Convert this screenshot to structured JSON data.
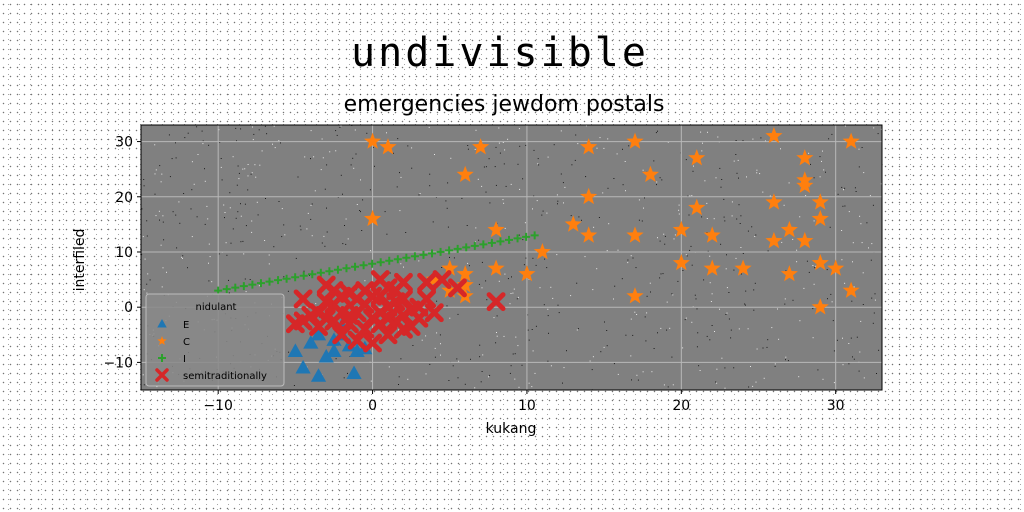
{
  "chart_data": {
    "type": "scatter",
    "title": "undivisible",
    "subtitle": "emergencies jewdom postals",
    "xlabel": "kukang",
    "ylabel": "interfiled",
    "xlim": [
      -15,
      33
    ],
    "ylim": [
      -15,
      33
    ],
    "x_ticks": [
      -10,
      0,
      10,
      20,
      30
    ],
    "y_ticks": [
      -10,
      0,
      10,
      20,
      30
    ],
    "grid": true,
    "plot_background": "#808080",
    "legend": {
      "title": "nidulant",
      "position": "lower-left"
    },
    "series": [
      {
        "name": "E",
        "marker": "triangle",
        "color": "#1f77b4",
        "points": [
          [
            -5,
            -8
          ],
          [
            -4.5,
            -11
          ],
          [
            -3.5,
            -12.5
          ],
          [
            -3,
            -9
          ],
          [
            -2.5,
            -6
          ],
          [
            -2,
            -5
          ],
          [
            -1.5,
            -7
          ],
          [
            -1,
            -8
          ],
          [
            -0.5,
            -7.5
          ],
          [
            -3.5,
            -5
          ],
          [
            -2.5,
            -8
          ],
          [
            -1.2,
            -12
          ],
          [
            -4,
            -6.5
          ],
          [
            -2,
            -3.5
          ]
        ]
      },
      {
        "name": "C",
        "marker": "star",
        "color": "#ff7f0e",
        "points": [
          [
            0,
            30
          ],
          [
            1,
            29
          ],
          [
            7,
            29
          ],
          [
            14,
            29
          ],
          [
            17,
            30
          ],
          [
            21,
            27
          ],
          [
            26,
            31
          ],
          [
            28,
            27
          ],
          [
            31,
            30
          ],
          [
            6,
            24
          ],
          [
            18,
            24
          ],
          [
            28,
            23
          ],
          [
            28,
            22
          ],
          [
            14,
            20
          ],
          [
            26,
            19
          ],
          [
            29,
            19
          ],
          [
            0,
            16
          ],
          [
            21,
            18
          ],
          [
            29,
            16
          ],
          [
            13,
            15
          ],
          [
            8,
            14
          ],
          [
            14,
            13
          ],
          [
            17,
            13
          ],
          [
            20,
            14
          ],
          [
            22,
            13
          ],
          [
            26,
            12
          ],
          [
            27,
            14
          ],
          [
            28,
            12
          ],
          [
            11,
            10
          ],
          [
            8,
            7
          ],
          [
            10,
            6
          ],
          [
            20,
            8
          ],
          [
            22,
            7
          ],
          [
            24,
            7
          ],
          [
            27,
            6
          ],
          [
            29,
            8
          ],
          [
            30,
            7
          ],
          [
            6,
            6
          ],
          [
            5,
            7
          ],
          [
            6,
            4
          ],
          [
            4,
            5
          ],
          [
            5,
            3
          ],
          [
            6,
            2
          ],
          [
            17,
            2
          ],
          [
            31,
            3
          ],
          [
            29,
            0
          ]
        ]
      },
      {
        "name": "I",
        "marker": "plus",
        "color": "#2ca02c",
        "line": {
          "x_start": -10,
          "y_start": 3,
          "x_end": 10.5,
          "y_end": 13,
          "count": 38
        }
      },
      {
        "name": "semitraditionally",
        "marker": "x",
        "color": "#d62728",
        "points": [
          [
            -3,
            4
          ],
          [
            -2.5,
            3
          ],
          [
            -1.5,
            2.5
          ],
          [
            0.5,
            5
          ],
          [
            1,
            3.5
          ],
          [
            2,
            4.5
          ],
          [
            3.5,
            4.5
          ],
          [
            4.5,
            5
          ],
          [
            5.5,
            3.5
          ],
          [
            8,
            1
          ],
          [
            -4.5,
            1.5
          ],
          [
            -3.5,
            -1
          ],
          [
            -2.5,
            0.5
          ],
          [
            -1.5,
            -1.5
          ],
          [
            -0.5,
            0.5
          ],
          [
            0.5,
            -1
          ],
          [
            1.5,
            1
          ],
          [
            2.5,
            -0.5
          ],
          [
            3.5,
            1.5
          ],
          [
            4,
            -1
          ],
          [
            -4.5,
            -2.5
          ],
          [
            -3.5,
            -3.5
          ],
          [
            -2.5,
            -2.5
          ],
          [
            -1.5,
            -3
          ],
          [
            -0.5,
            -4
          ],
          [
            0.5,
            -3
          ],
          [
            1.5,
            -2.5
          ],
          [
            2.5,
            -3.5
          ],
          [
            3,
            -2
          ],
          [
            -2,
            -5
          ],
          [
            -1,
            -6
          ],
          [
            0,
            -6.5
          ],
          [
            1,
            -5
          ],
          [
            2,
            -4
          ],
          [
            -5,
            -3
          ],
          [
            -4,
            -1.5
          ],
          [
            -3,
            1
          ],
          [
            -2,
            2
          ],
          [
            -1,
            1.5
          ],
          [
            0,
            2
          ],
          [
            1,
            0
          ],
          [
            2,
            1.5
          ],
          [
            3,
            0
          ],
          [
            0,
            -2
          ],
          [
            -1,
            -1
          ],
          [
            -2,
            -1
          ],
          [
            -3,
            -2
          ],
          [
            1,
            -2
          ],
          [
            2,
            -1.5
          ],
          [
            -0.5,
            3
          ],
          [
            0.5,
            2
          ],
          [
            1.5,
            3
          ]
        ]
      }
    ]
  }
}
